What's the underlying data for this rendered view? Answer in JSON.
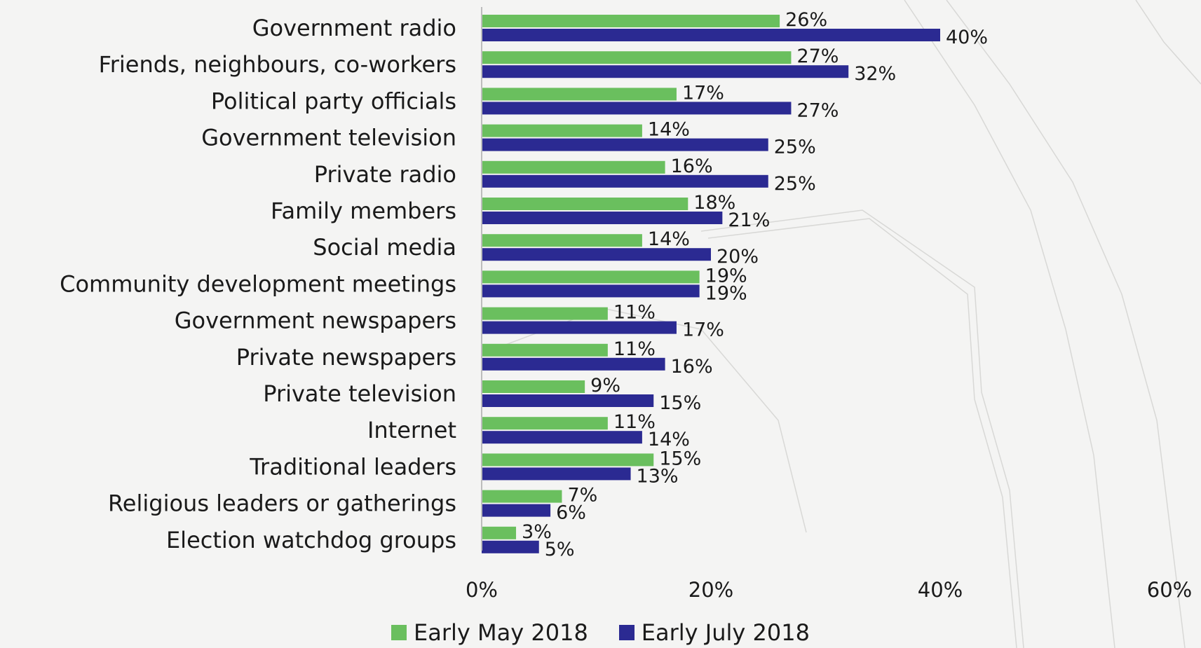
{
  "chart_data": {
    "type": "bar",
    "orientation": "horizontal",
    "categories": [
      "Government radio",
      "Friends, neighbours, co-workers",
      "Political party officials",
      "Government television",
      "Private radio",
      "Family members",
      "Social media",
      "Community development meetings",
      "Government newspapers",
      "Private newspapers",
      "Private television",
      "Internet",
      "Traditional leaders",
      "Religious leaders or gatherings",
      "Election watchdog groups"
    ],
    "series": [
      {
        "name": "Early May 2018",
        "color": "#6abf5e",
        "values": [
          26,
          27,
          17,
          14,
          16,
          18,
          14,
          19,
          11,
          11,
          9,
          11,
          15,
          7,
          3
        ],
        "labels": [
          "26%",
          "27%",
          "17%",
          "14%",
          "16%",
          "18%",
          "14%",
          "19%",
          "11%",
          "11%",
          "9%",
          "11%",
          "15%",
          "7%",
          "3%"
        ]
      },
      {
        "name": "Early July 2018",
        "color": "#2b2a92",
        "values": [
          40,
          32,
          27,
          25,
          25,
          21,
          20,
          19,
          17,
          16,
          15,
          14,
          13,
          6,
          5
        ],
        "labels": [
          "40%",
          "32%",
          "27%",
          "25%",
          "25%",
          "21%",
          "20%",
          "19%",
          "17%",
          "16%",
          "15%",
          "14%",
          "13%",
          "6%",
          "5%"
        ]
      }
    ],
    "xlim": [
      0,
      60
    ],
    "xticks": [
      0,
      20,
      40,
      60
    ],
    "xtick_labels": [
      "0%",
      "20%",
      "40%",
      "60%"
    ],
    "title": "",
    "xlabel": "",
    "ylabel": "",
    "grid": false,
    "legend_position": "bottom-center"
  }
}
